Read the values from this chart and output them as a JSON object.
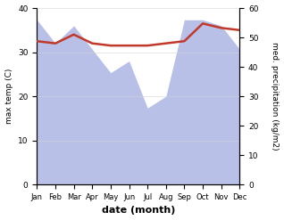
{
  "months": [
    1,
    2,
    3,
    4,
    5,
    6,
    7,
    8,
    9,
    10,
    11,
    12
  ],
  "month_labels": [
    "Jan",
    "Feb",
    "Mar",
    "Apr",
    "May",
    "Jun",
    "Jul",
    "Aug",
    "Sep",
    "Oct",
    "Nov",
    "Dec"
  ],
  "temp_max": [
    32.5,
    32.0,
    34.0,
    32.0,
    31.5,
    31.5,
    31.5,
    32.0,
    32.5,
    36.5,
    35.5,
    35.0
  ],
  "precip": [
    56.0,
    48.0,
    54.0,
    46.0,
    38.0,
    42.0,
    26.0,
    30.0,
    56.0,
    56.0,
    54.0,
    46.0
  ],
  "temp_ylim": [
    0,
    40
  ],
  "precip_ylim": [
    0,
    60
  ],
  "temp_color": "#c0392b",
  "precip_fill_color": "#b8c0e8",
  "temp_lw": 1.8,
  "xlabel": "date (month)",
  "ylabel_left": "max temp (C)",
  "ylabel_right": "med. precipitation (kg/m2)",
  "fig_width": 3.18,
  "fig_height": 2.47,
  "dpi": 100
}
